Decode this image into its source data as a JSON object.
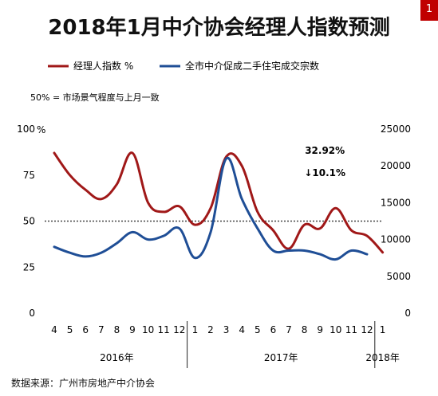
{
  "title": "2018年1月中介协会经理人指数预测",
  "page_badge": "1",
  "note": "50% = 市场景气程度与上月一致",
  "source": "数据来源：广州市房地产中介协会",
  "colors": {
    "index": "#a01818",
    "volume": "#1f4e96",
    "reference": "#444444"
  },
  "chart_data": {
    "type": "line",
    "left_axis": {
      "unit": "%",
      "ticks": [
        "0",
        "25",
        "50",
        "75",
        "100"
      ],
      "ylim": [
        0,
        100
      ]
    },
    "right_axis": {
      "ticks": [
        "0",
        "5000",
        "10000",
        "15000",
        "20000",
        "25000"
      ],
      "ylim": [
        0,
        25000
      ]
    },
    "categories": [
      "4",
      "5",
      "6",
      "7",
      "8",
      "9",
      "10",
      "11",
      "12",
      "1",
      "2",
      "3",
      "4",
      "5",
      "6",
      "7",
      "8",
      "9",
      "10",
      "11",
      "12",
      "1"
    ],
    "year_groups": [
      {
        "label": "2016年",
        "from": 0,
        "to": 8
      },
      {
        "label": "2017年",
        "from": 9,
        "to": 20
      },
      {
        "label": "2018年",
        "from": 21,
        "to": 21
      }
    ],
    "reference_line": 50,
    "series": [
      {
        "name": "经理人指数 %",
        "axis": "left",
        "values": [
          87,
          75,
          67,
          62,
          70,
          87,
          60,
          55,
          58,
          48,
          57,
          85,
          80,
          55,
          45,
          35,
          48,
          46,
          57,
          45,
          42,
          33
        ]
      },
      {
        "name": "全市中介促成二手住宅成交宗数",
        "axis": "right",
        "values": [
          9000,
          8200,
          7700,
          8200,
          9500,
          11000,
          10000,
          10500,
          11500,
          7500,
          11000,
          21000,
          15500,
          11500,
          8500,
          8500,
          8500,
          8000,
          7300,
          8500,
          8000,
          null
        ]
      }
    ],
    "annotations": [
      {
        "text": "32.92%",
        "index": 17
      },
      {
        "text": "↓10.1%",
        "index": 17
      }
    ]
  }
}
